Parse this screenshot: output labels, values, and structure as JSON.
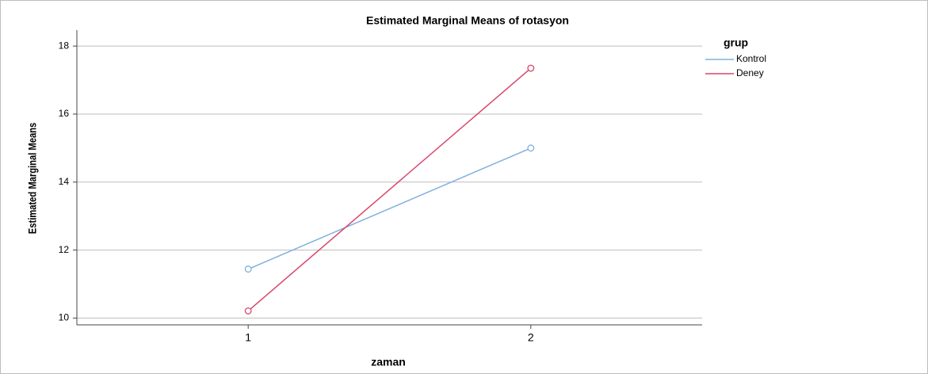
{
  "chart_data": {
    "type": "line",
    "title": "Estimated Marginal Means of rotasyon",
    "x_label": "zaman",
    "y_label": "Estimated Marginal Means",
    "legend_title": "grup",
    "categories": [
      "1",
      "2"
    ],
    "series": [
      {
        "name": "Kontrol",
        "color": "#7fb0e0",
        "values": [
          11.44,
          15.0
        ]
      },
      {
        "name": "Deney",
        "color": "#d9466a",
        "values": [
          10.21,
          17.35
        ]
      }
    ],
    "ylim": [
      9.8,
      18.47
    ],
    "yticks": [
      10,
      12,
      14,
      16,
      18
    ],
    "grid": true,
    "legend": "right"
  }
}
